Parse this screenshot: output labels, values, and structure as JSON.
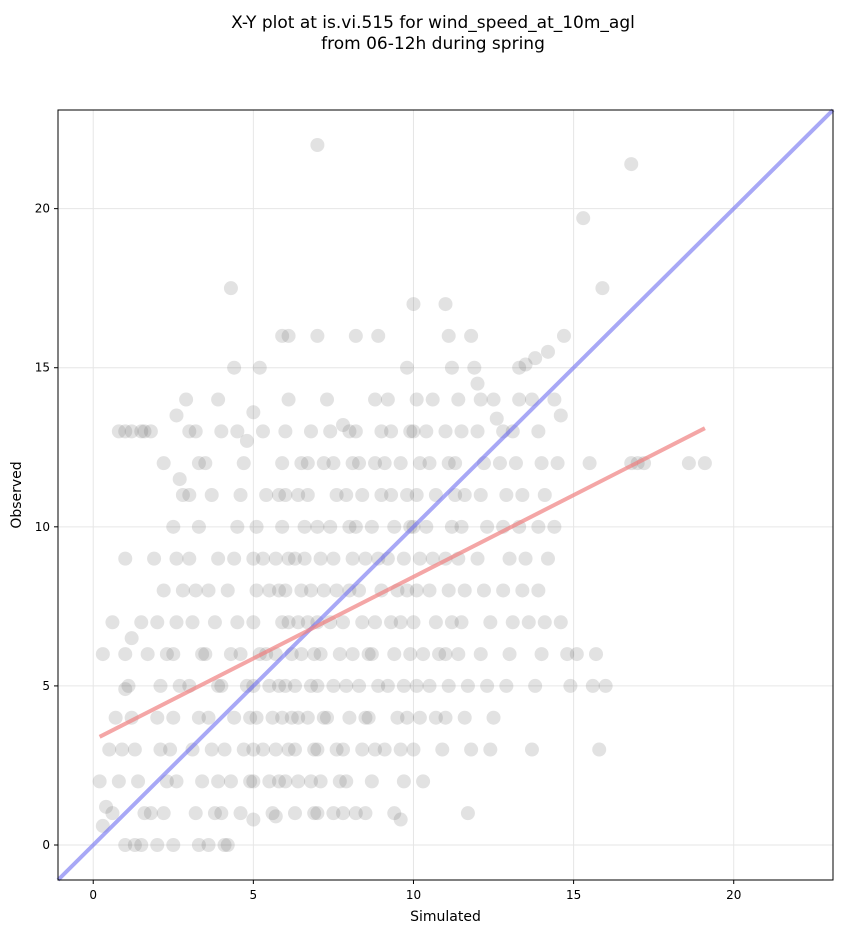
{
  "chart_data": {
    "type": "scatter",
    "title": [
      "X-Y plot at is.vi.515 for wind_speed_at_10m_agl",
      "from 06-12h during spring"
    ],
    "xlabel": "Simulated",
    "ylabel": "Observed",
    "xlim": [
      -1.1,
      23.1
    ],
    "ylim": [
      -1.1,
      23.1
    ],
    "xticks": [
      0,
      5,
      10,
      15,
      20
    ],
    "yticks": [
      0,
      5,
      10,
      15,
      20
    ],
    "grid": true,
    "colors": {
      "points": "#555555",
      "identity": "#6e6ef0",
      "fit": "#f08080",
      "grid": "#e6e6e6"
    },
    "identity_line": {
      "x": [
        -1.1,
        23.1
      ],
      "y": [
        -1.1,
        23.1
      ]
    },
    "fit_line": {
      "x": [
        0.2,
        19.1
      ],
      "y": [
        3.4,
        13.1
      ]
    },
    "points": [
      [
        0.3,
        6
      ],
      [
        0.6,
        7
      ],
      [
        0.2,
        2
      ],
      [
        0.3,
        0.6
      ],
      [
        0.4,
        1.2
      ],
      [
        0.5,
        3
      ],
      [
        0.6,
        1
      ],
      [
        0.7,
        4
      ],
      [
        0.8,
        2
      ],
      [
        0.9,
        3
      ],
      [
        0.8,
        13
      ],
      [
        1.0,
        13
      ],
      [
        1.2,
        13
      ],
      [
        1.5,
        13
      ],
      [
        1.6,
        13
      ],
      [
        1.8,
        13
      ],
      [
        1.0,
        9
      ],
      [
        1.0,
        6
      ],
      [
        1.1,
        5
      ],
      [
        1.0,
        4.9
      ],
      [
        1.2,
        4
      ],
      [
        1.3,
        3
      ],
      [
        1.4,
        2
      ],
      [
        1.0,
        0
      ],
      [
        1.3,
        0
      ],
      [
        1.5,
        0
      ],
      [
        1.6,
        1
      ],
      [
        1.8,
        1
      ],
      [
        1.2,
        6.5
      ],
      [
        1.5,
        7
      ],
      [
        1.7,
        6
      ],
      [
        1.9,
        9
      ],
      [
        2.0,
        7
      ],
      [
        2.2,
        8
      ],
      [
        2.3,
        6
      ],
      [
        2.1,
        5
      ],
      [
        2.0,
        4
      ],
      [
        2.1,
        3
      ],
      [
        2.3,
        2
      ],
      [
        2.2,
        1
      ],
      [
        2.0,
        0
      ],
      [
        2.5,
        0
      ],
      [
        2.6,
        2
      ],
      [
        2.4,
        3
      ],
      [
        2.5,
        4
      ],
      [
        2.7,
        5
      ],
      [
        2.5,
        6
      ],
      [
        2.6,
        7
      ],
      [
        2.8,
        8
      ],
      [
        2.6,
        9
      ],
      [
        2.5,
        10
      ],
      [
        2.8,
        11
      ],
      [
        2.2,
        12
      ],
      [
        2.7,
        11.5
      ],
      [
        2.9,
        14
      ],
      [
        2.6,
        13.5
      ],
      [
        3.0,
        13
      ],
      [
        3.2,
        13
      ],
      [
        3.3,
        12
      ],
      [
        3.5,
        12
      ],
      [
        3.0,
        11
      ],
      [
        3.3,
        10
      ],
      [
        3.0,
        9
      ],
      [
        3.2,
        8
      ],
      [
        3.1,
        7
      ],
      [
        3.4,
        6
      ],
      [
        3.0,
        5
      ],
      [
        3.3,
        4
      ],
      [
        3.1,
        3
      ],
      [
        3.4,
        2
      ],
      [
        3.2,
        1
      ],
      [
        3.3,
        0
      ],
      [
        3.6,
        0
      ],
      [
        3.8,
        1
      ],
      [
        3.9,
        2
      ],
      [
        3.7,
        3
      ],
      [
        3.6,
        4
      ],
      [
        3.9,
        5
      ],
      [
        3.5,
        6
      ],
      [
        3.8,
        7
      ],
      [
        3.6,
        8
      ],
      [
        3.9,
        9
      ],
      [
        3.7,
        11
      ],
      [
        3.9,
        14
      ],
      [
        4.0,
        13
      ],
      [
        4.1,
        0
      ],
      [
        4.2,
        0
      ],
      [
        4.0,
        1
      ],
      [
        4.3,
        2
      ],
      [
        4.1,
        3
      ],
      [
        4.4,
        4
      ],
      [
        4.0,
        5
      ],
      [
        4.3,
        6
      ],
      [
        4.5,
        7
      ],
      [
        4.2,
        8
      ],
      [
        4.4,
        9
      ],
      [
        4.5,
        10
      ],
      [
        4.6,
        11
      ],
      [
        4.3,
        17.5
      ],
      [
        4.4,
        15
      ],
      [
        4.5,
        13
      ],
      [
        4.7,
        12
      ],
      [
        4.8,
        12.7
      ],
      [
        4.6,
        6
      ],
      [
        4.8,
        5
      ],
      [
        4.9,
        4
      ],
      [
        4.7,
        3
      ],
      [
        4.9,
        2
      ],
      [
        4.6,
        1
      ],
      [
        5.0,
        0.8
      ],
      [
        5.0,
        2
      ],
      [
        5.0,
        3
      ],
      [
        5.1,
        4
      ],
      [
        5.0,
        5
      ],
      [
        5.2,
        6
      ],
      [
        5.0,
        7
      ],
      [
        5.1,
        8
      ],
      [
        5.0,
        9
      ],
      [
        5.1,
        10
      ],
      [
        5.0,
        13.6
      ],
      [
        5.2,
        15
      ],
      [
        5.3,
        13
      ],
      [
        5.4,
        11
      ],
      [
        5.3,
        9
      ],
      [
        5.5,
        8
      ],
      [
        5.4,
        6
      ],
      [
        5.5,
        5
      ],
      [
        5.6,
        4
      ],
      [
        5.3,
        3
      ],
      [
        5.5,
        2
      ],
      [
        5.6,
        1
      ],
      [
        5.7,
        0.9
      ],
      [
        5.8,
        2
      ],
      [
        5.7,
        3
      ],
      [
        5.9,
        4
      ],
      [
        5.8,
        5
      ],
      [
        5.7,
        6
      ],
      [
        5.9,
        7
      ],
      [
        5.8,
        8
      ],
      [
        5.7,
        9
      ],
      [
        5.9,
        10
      ],
      [
        5.8,
        11
      ],
      [
        5.9,
        12
      ],
      [
        6.0,
        13
      ],
      [
        5.9,
        16
      ],
      [
        6.1,
        16
      ],
      [
        6.1,
        14
      ],
      [
        6.0,
        11
      ],
      [
        6.1,
        9
      ],
      [
        6.0,
        8
      ],
      [
        6.1,
        7
      ],
      [
        6.2,
        6
      ],
      [
        6.0,
        5
      ],
      [
        6.2,
        4
      ],
      [
        6.1,
        3
      ],
      [
        6.0,
        2
      ],
      [
        6.3,
        1
      ],
      [
        6.4,
        2
      ],
      [
        6.3,
        3
      ],
      [
        6.4,
        4
      ],
      [
        6.3,
        5
      ],
      [
        6.5,
        6
      ],
      [
        6.4,
        7
      ],
      [
        6.5,
        8
      ],
      [
        6.3,
        9
      ],
      [
        6.6,
        10
      ],
      [
        6.4,
        11
      ],
      [
        6.5,
        12
      ],
      [
        6.7,
        12
      ],
      [
        6.8,
        13
      ],
      [
        6.7,
        11
      ],
      [
        6.6,
        9
      ],
      [
        6.8,
        8
      ],
      [
        6.7,
        7
      ],
      [
        6.9,
        6
      ],
      [
        6.8,
        5
      ],
      [
        6.7,
        4
      ],
      [
        6.9,
        3
      ],
      [
        6.8,
        2
      ],
      [
        6.9,
        1
      ],
      [
        7.0,
        1
      ],
      [
        7.1,
        2
      ],
      [
        7.0,
        3
      ],
      [
        7.2,
        4
      ],
      [
        7.0,
        5
      ],
      [
        7.1,
        6
      ],
      [
        7.0,
        7
      ],
      [
        7.2,
        8
      ],
      [
        7.1,
        9
      ],
      [
        7.0,
        10
      ],
      [
        7.2,
        12
      ],
      [
        7.0,
        16
      ],
      [
        7.0,
        22
      ],
      [
        7.3,
        14
      ],
      [
        7.4,
        13
      ],
      [
        7.5,
        12
      ],
      [
        7.6,
        11
      ],
      [
        7.4,
        10
      ],
      [
        7.5,
        9
      ],
      [
        7.6,
        8
      ],
      [
        7.4,
        7
      ],
      [
        7.7,
        6
      ],
      [
        7.5,
        5
      ],
      [
        7.3,
        4
      ],
      [
        7.6,
        3
      ],
      [
        7.7,
        2
      ],
      [
        7.5,
        1
      ],
      [
        7.8,
        1
      ],
      [
        7.9,
        2
      ],
      [
        7.8,
        3
      ],
      [
        8.0,
        4
      ],
      [
        7.9,
        5
      ],
      [
        8.1,
        6
      ],
      [
        7.8,
        7
      ],
      [
        8.0,
        8
      ],
      [
        8.1,
        9
      ],
      [
        8.0,
        10
      ],
      [
        7.9,
        11
      ],
      [
        8.1,
        12
      ],
      [
        8.0,
        13
      ],
      [
        7.8,
        13.2
      ],
      [
        8.2,
        16
      ],
      [
        8.2,
        13
      ],
      [
        8.3,
        12
      ],
      [
        8.4,
        11
      ],
      [
        8.2,
        10
      ],
      [
        8.5,
        9
      ],
      [
        8.3,
        8
      ],
      [
        8.4,
        7
      ],
      [
        8.6,
        6
      ],
      [
        8.3,
        5
      ],
      [
        8.5,
        4
      ],
      [
        8.4,
        3
      ],
      [
        8.2,
        1
      ],
      [
        8.5,
        1
      ],
      [
        8.7,
        2
      ],
      [
        8.8,
        3
      ],
      [
        8.6,
        4
      ],
      [
        8.9,
        5
      ],
      [
        8.7,
        6
      ],
      [
        8.8,
        7
      ],
      [
        9.0,
        8
      ],
      [
        8.9,
        9
      ],
      [
        8.7,
        10
      ],
      [
        9.0,
        11
      ],
      [
        8.8,
        12
      ],
      [
        9.0,
        13
      ],
      [
        8.9,
        16
      ],
      [
        8.8,
        14
      ],
      [
        9.2,
        14
      ],
      [
        9.3,
        13
      ],
      [
        9.1,
        12
      ],
      [
        9.3,
        11
      ],
      [
        9.4,
        10
      ],
      [
        9.2,
        9
      ],
      [
        9.5,
        8
      ],
      [
        9.3,
        7
      ],
      [
        9.4,
        6
      ],
      [
        9.2,
        5
      ],
      [
        9.5,
        4
      ],
      [
        9.1,
        3
      ],
      [
        9.4,
        1
      ],
      [
        9.6,
        0.8
      ],
      [
        9.7,
        2
      ],
      [
        9.6,
        3
      ],
      [
        9.8,
        4
      ],
      [
        9.7,
        5
      ],
      [
        9.9,
        6
      ],
      [
        9.6,
        7
      ],
      [
        9.8,
        8
      ],
      [
        9.7,
        9
      ],
      [
        9.9,
        10
      ],
      [
        9.8,
        11
      ],
      [
        9.6,
        12
      ],
      [
        9.9,
        13
      ],
      [
        9.8,
        15
      ],
      [
        10.0,
        17
      ],
      [
        10.1,
        14
      ],
      [
        10.0,
        13
      ],
      [
        10.2,
        12
      ],
      [
        10.1,
        11
      ],
      [
        10.0,
        10
      ],
      [
        10.2,
        9
      ],
      [
        10.1,
        8
      ],
      [
        10.0,
        7
      ],
      [
        10.3,
        6
      ],
      [
        10.1,
        5
      ],
      [
        10.2,
        4
      ],
      [
        10.0,
        3
      ],
      [
        10.3,
        2
      ],
      [
        10.4,
        13
      ],
      [
        10.6,
        14
      ],
      [
        10.5,
        12
      ],
      [
        10.7,
        11
      ],
      [
        10.4,
        10
      ],
      [
        10.6,
        9
      ],
      [
        10.5,
        8
      ],
      [
        10.7,
        7
      ],
      [
        10.8,
        6
      ],
      [
        10.5,
        5
      ],
      [
        10.7,
        4
      ],
      [
        10.9,
        3
      ],
      [
        11.0,
        4
      ],
      [
        11.1,
        5
      ],
      [
        11.0,
        6
      ],
      [
        11.2,
        7
      ],
      [
        11.1,
        8
      ],
      [
        11.0,
        9
      ],
      [
        11.2,
        10
      ],
      [
        11.3,
        11
      ],
      [
        11.1,
        12
      ],
      [
        11.0,
        13
      ],
      [
        11.0,
        17
      ],
      [
        11.1,
        16
      ],
      [
        11.2,
        15
      ],
      [
        11.4,
        14
      ],
      [
        11.5,
        13
      ],
      [
        11.3,
        12
      ],
      [
        11.6,
        11
      ],
      [
        11.5,
        10
      ],
      [
        11.4,
        9
      ],
      [
        11.6,
        8
      ],
      [
        11.5,
        7
      ],
      [
        11.4,
        6
      ],
      [
        11.7,
        5
      ],
      [
        11.6,
        4
      ],
      [
        11.8,
        3
      ],
      [
        11.7,
        1
      ],
      [
        11.8,
        16
      ],
      [
        11.9,
        15
      ],
      [
        12.0,
        14.5
      ],
      [
        12.1,
        14
      ],
      [
        12.0,
        13
      ],
      [
        12.2,
        12
      ],
      [
        12.1,
        11
      ],
      [
        12.3,
        10
      ],
      [
        12.0,
        9
      ],
      [
        12.2,
        8
      ],
      [
        12.4,
        7
      ],
      [
        12.1,
        6
      ],
      [
        12.3,
        5
      ],
      [
        12.5,
        4
      ],
      [
        12.4,
        3
      ],
      [
        12.5,
        14
      ],
      [
        12.6,
        13.4
      ],
      [
        12.8,
        13
      ],
      [
        12.7,
        12
      ],
      [
        12.9,
        11
      ],
      [
        12.8,
        10
      ],
      [
        13.0,
        9
      ],
      [
        12.8,
        8
      ],
      [
        13.1,
        7
      ],
      [
        13.0,
        6
      ],
      [
        12.9,
        5
      ],
      [
        13.1,
        13
      ],
      [
        13.3,
        14
      ],
      [
        13.2,
        12
      ],
      [
        13.4,
        11
      ],
      [
        13.3,
        10
      ],
      [
        13.5,
        9
      ],
      [
        13.4,
        8
      ],
      [
        13.6,
        7
      ],
      [
        13.3,
        15
      ],
      [
        13.5,
        15.1
      ],
      [
        13.7,
        14
      ],
      [
        13.8,
        15.3
      ],
      [
        13.9,
        13
      ],
      [
        14.0,
        12
      ],
      [
        14.1,
        11
      ],
      [
        13.9,
        10
      ],
      [
        14.2,
        9
      ],
      [
        13.9,
        8
      ],
      [
        14.1,
        7
      ],
      [
        14.0,
        6
      ],
      [
        13.8,
        5
      ],
      [
        13.7,
        3
      ],
      [
        14.2,
        15.5
      ],
      [
        14.4,
        14
      ],
      [
        14.6,
        13.5
      ],
      [
        14.7,
        16
      ],
      [
        14.5,
        12
      ],
      [
        14.4,
        10
      ],
      [
        14.6,
        7
      ],
      [
        14.8,
        6
      ],
      [
        14.9,
        5
      ],
      [
        15.1,
        6
      ],
      [
        15.3,
        19.7
      ],
      [
        15.5,
        12
      ],
      [
        15.7,
        6
      ],
      [
        15.6,
        5
      ],
      [
        15.8,
        3
      ],
      [
        15.9,
        17.5
      ],
      [
        16.0,
        5
      ],
      [
        16.8,
        21.4
      ],
      [
        16.8,
        12
      ],
      [
        17.0,
        12
      ],
      [
        18.6,
        12
      ],
      [
        19.1,
        12
      ],
      [
        17.2,
        12
      ]
    ]
  }
}
